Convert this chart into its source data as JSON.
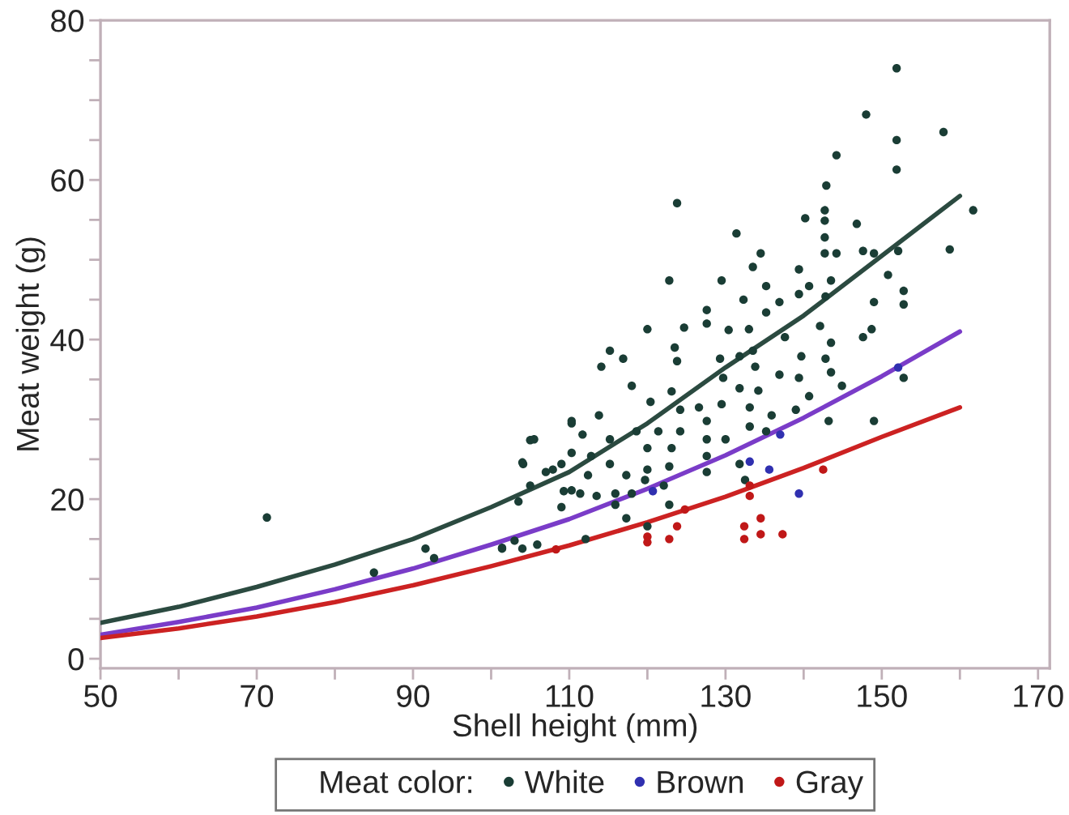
{
  "chart_data": {
    "type": "scatter",
    "xlabel": "Shell height (mm)",
    "ylabel": "Meat weight (g)",
    "legend_title": "Meat color:",
    "legend": "bottom",
    "marker": "circle",
    "grid": false,
    "xlim": [
      50,
      171.5
    ],
    "ylim": [
      -1.2,
      80
    ],
    "xticks": [
      50,
      {
        "value": 60,
        "label": null
      },
      70,
      {
        "value": 80,
        "label": null
      },
      90,
      {
        "value": 100,
        "label": null
      },
      110,
      {
        "value": 120,
        "label": null
      },
      130,
      {
        "value": 140,
        "label": null
      },
      150,
      {
        "value": 160,
        "label": null
      },
      170
    ],
    "yticks": [
      0,
      {
        "value": 5,
        "label": null
      },
      {
        "value": 10,
        "label": null
      },
      {
        "value": 15,
        "label": null
      },
      20,
      {
        "value": 25,
        "label": null
      },
      {
        "value": 30,
        "label": null
      },
      {
        "value": 35,
        "label": null
      },
      40,
      {
        "value": 45,
        "label": null
      },
      {
        "value": 50,
        "label": null
      },
      {
        "value": 55,
        "label": null
      },
      60,
      {
        "value": 65,
        "label": null
      },
      {
        "value": 70,
        "label": null
      },
      {
        "value": 75,
        "label": null
      },
      80
    ],
    "series": [
      {
        "name": "White",
        "color": "#1a3d35",
        "x": [
          71.3,
          85,
          91.6,
          92.7,
          101.4,
          103,
          104,
          103.5,
          104,
          105,
          105,
          107,
          109,
          109,
          110.3,
          110.3,
          110.3,
          151.9,
          148.0,
          157.9,
          151.9,
          144.2,
          151.9,
          161.7,
          123.8,
          142.9,
          142.7,
          142.7,
          140.2,
          146.8,
          131.4,
          158.7,
          134.5,
          133.5,
          142.7,
          142.7,
          144.2,
          147.6,
          149.0,
          152.1,
          139.4,
          122.8,
          129.5,
          135.2,
          140.7,
          143.5,
          150.8,
          132.3,
          136.9,
          139.4,
          142.8,
          149.0,
          152.8,
          152.8,
          135.2,
          127.6,
          127.6,
          124.7,
          130.4,
          133.0,
          142.1,
          148.7,
          143.5,
          137.6,
          147.6,
          120.0,
          115.2,
          116.9,
          114.1,
          123.5,
          123.8,
          129.3,
          131.8,
          133.5,
          133.8,
          139.7,
          142.8,
          143.5,
          139.4,
          136.9,
          131.8,
          134.2,
          129.7,
          144.9,
          118.0,
          120.4,
          123.1,
          124.2,
          126.6,
          129.5,
          133.1,
          135.9,
          127.6,
          139.0,
          140.7,
          143.2,
          149.0,
          152.8,
          110.3,
          113.8,
          111.7,
          115.2,
          118.6,
          121.4,
          124.2,
          120.0,
          123.1,
          127.6,
          130.0,
          133.1,
          135.2,
          105.5,
          104.1,
          107.9,
          112.8,
          112.4,
          115.2,
          117.3,
          120.0,
          122.8,
          127.6,
          109.3,
          111.4,
          113.5,
          115.9,
          118.0,
          119.7,
          122.1,
          115.9,
          117.3,
          120.0,
          112.1,
          122.8,
          105.9,
          101.4,
          131.8,
          132.5,
          127.6
        ],
        "values": [
          17.7,
          10.8,
          13.8,
          12.6,
          13.8,
          14.8,
          13.8,
          19.7,
          24.6,
          27.4,
          21.7,
          23.4,
          24.4,
          19.0,
          29.5,
          25.8,
          21.1,
          74.0,
          68.2,
          66.0,
          65.0,
          63.1,
          61.3,
          56.2,
          57.1,
          59.3,
          56.2,
          54.9,
          55.2,
          54.5,
          53.3,
          51.3,
          50.8,
          49.1,
          52.8,
          50.8,
          50.8,
          51.1,
          50.8,
          51.1,
          48.8,
          47.4,
          47.4,
          46.7,
          46.7,
          47.4,
          48.1,
          45.0,
          44.7,
          45.7,
          45.4,
          44.7,
          46.1,
          44.4,
          43.4,
          43.7,
          42.0,
          41.5,
          41.2,
          41.3,
          41.7,
          41.3,
          39.6,
          40.3,
          40.3,
          41.3,
          38.6,
          37.6,
          36.6,
          39.0,
          37.3,
          37.6,
          37.9,
          38.6,
          36.6,
          37.9,
          37.6,
          35.9,
          35.2,
          35.6,
          33.9,
          33.6,
          35.2,
          34.2,
          34.2,
          32.2,
          33.5,
          31.2,
          31.5,
          31.9,
          31.5,
          30.5,
          29.8,
          31.2,
          32.9,
          29.8,
          29.8,
          35.2,
          29.8,
          30.5,
          28.1,
          27.5,
          28.5,
          28.5,
          28.5,
          26.4,
          26.4,
          27.5,
          27.5,
          29.1,
          28.5,
          27.5,
          24.4,
          23.7,
          25.4,
          23.0,
          24.4,
          23.0,
          23.7,
          24.1,
          23.4,
          21.0,
          20.7,
          20.4,
          20.7,
          20.7,
          22.4,
          21.7,
          19.3,
          17.6,
          16.6,
          15.0,
          19.3,
          14.3,
          13.9,
          24.4,
          22.4,
          25.4
        ]
      },
      {
        "name": "Brown",
        "color": "#3030b0",
        "x": [
          133.1,
          135.6,
          139.4,
          152.1,
          120.7,
          137.0
        ],
        "values": [
          24.7,
          23.7,
          20.7,
          36.5,
          21.0,
          28.1
        ]
      },
      {
        "name": "Gray",
        "color": "#c01818",
        "x": [
          108.3,
          120.0,
          120.0,
          122.8,
          123.8,
          124.8,
          133.1,
          133.1,
          132.4,
          132.4,
          134.5,
          134.5,
          137.3,
          142.5
        ],
        "values": [
          13.7,
          15.3,
          14.6,
          15.0,
          16.6,
          18.7,
          21.7,
          20.4,
          16.6,
          15.0,
          17.6,
          15.6,
          15.6,
          23.7
        ]
      },
      {
        "type": "line",
        "marker": "none",
        "color": "#2b4a40",
        "x": [
          50,
          60,
          70,
          80,
          90,
          100,
          110,
          120,
          130,
          140,
          150,
          160
        ],
        "values": [
          4.5,
          6.5,
          9,
          11.8,
          15,
          19,
          23.4,
          29.5,
          36.5,
          43,
          50.5,
          58
        ]
      },
      {
        "type": "line",
        "marker": "none",
        "color": "#7a3cc8",
        "x": [
          50,
          60,
          70,
          80,
          90,
          100,
          110,
          120,
          130,
          140,
          150,
          160
        ],
        "values": [
          3,
          4.6,
          6.4,
          8.7,
          11.3,
          14.3,
          17.5,
          21.3,
          25.5,
          30.2,
          35.4,
          41
        ]
      },
      {
        "type": "line",
        "marker": "none",
        "color": "#cc2222",
        "x": [
          50,
          60,
          70,
          80,
          90,
          100,
          110,
          120,
          130,
          140,
          150,
          160
        ],
        "values": [
          2.6,
          3.8,
          5.3,
          7.1,
          9.2,
          11.6,
          14.2,
          17.1,
          20.3,
          23.9,
          27.8,
          31.5
        ]
      }
    ]
  }
}
